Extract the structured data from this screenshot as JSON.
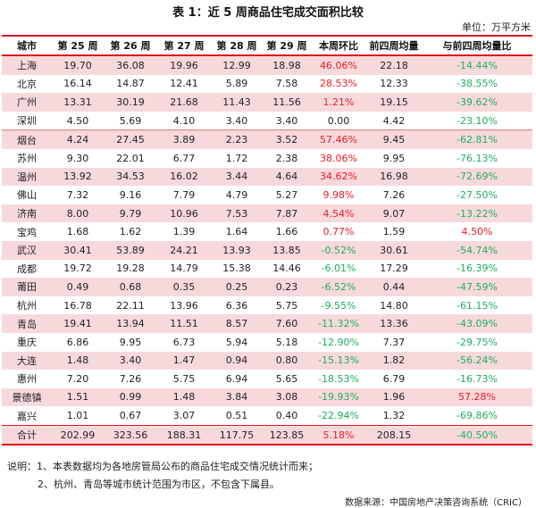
{
  "title": "表 1：近 5 周商品住宅成交面积比较",
  "unit": "单位：万平方米",
  "table": {
    "headers": [
      "城市",
      "第 25 周",
      "第 26 周",
      "第 27 周",
      "第 28 周",
      "第 29 周",
      "本周环比",
      "前四周均量",
      "与前四周均量比"
    ],
    "rows": [
      {
        "city": "上海",
        "w25": "19.70",
        "w26": "36.08",
        "w27": "19.96",
        "w28": "12.99",
        "w29": "18.98",
        "wow": "46.06%",
        "avg4": "22.18",
        "vs_avg": "-14.44%"
      },
      {
        "city": "北京",
        "w25": "16.14",
        "w26": "14.87",
        "w27": "12.41",
        "w28": "5.89",
        "w29": "7.58",
        "wow": "28.53%",
        "avg4": "12.33",
        "vs_avg": "-38.55%"
      },
      {
        "city": "广州",
        "w25": "13.31",
        "w26": "30.19",
        "w27": "21.68",
        "w28": "11.43",
        "w29": "11.56",
        "wow": "1.21%",
        "avg4": "19.15",
        "vs_avg": "-39.62%"
      },
      {
        "city": "深圳",
        "w25": "4.50",
        "w26": "5.69",
        "w27": "4.10",
        "w28": "3.40",
        "w29": "3.40",
        "wow": "0.00",
        "avg4": "4.42",
        "vs_avg": "-23.10%"
      },
      {
        "city": "烟台",
        "w25": "4.24",
        "w26": "27.45",
        "w27": "3.89",
        "w28": "2.23",
        "w29": "3.52",
        "wow": "57.46%",
        "avg4": "9.45",
        "vs_avg": "-62.81%"
      },
      {
        "city": "苏州",
        "w25": "9.30",
        "w26": "22.01",
        "w27": "6.77",
        "w28": "1.72",
        "w29": "2.38",
        "wow": "38.06%",
        "avg4": "9.95",
        "vs_avg": "-76.13%"
      },
      {
        "city": "温州",
        "w25": "13.92",
        "w26": "34.53",
        "w27": "16.02",
        "w28": "3.44",
        "w29": "4.64",
        "wow": "34.62%",
        "avg4": "16.98",
        "vs_avg": "-72.69%"
      },
      {
        "city": "佛山",
        "w25": "7.32",
        "w26": "9.16",
        "w27": "7.79",
        "w28": "4.79",
        "w29": "5.27",
        "wow": "9.98%",
        "avg4": "7.26",
        "vs_avg": "-27.50%"
      },
      {
        "city": "济南",
        "w25": "8.00",
        "w26": "9.79",
        "w27": "10.96",
        "w28": "7.53",
        "w29": "7.87",
        "wow": "4.54%",
        "avg4": "9.07",
        "vs_avg": "-13.22%"
      },
      {
        "city": "宝鸡",
        "w25": "1.68",
        "w26": "1.62",
        "w27": "1.39",
        "w28": "1.64",
        "w29": "1.66",
        "wow": "0.77%",
        "avg4": "1.59",
        "vs_avg": "4.50%"
      },
      {
        "city": "武汉",
        "w25": "30.41",
        "w26": "53.89",
        "w27": "24.21",
        "w28": "13.93",
        "w29": "13.85",
        "wow": "-0.52%",
        "avg4": "30.61",
        "vs_avg": "-54.74%"
      },
      {
        "city": "成都",
        "w25": "19.72",
        "w26": "19.28",
        "w27": "14.79",
        "w28": "15.38",
        "w29": "14.46",
        "wow": "-6.01%",
        "avg4": "17.29",
        "vs_avg": "-16.39%"
      },
      {
        "city": "莆田",
        "w25": "0.49",
        "w26": "0.68",
        "w27": "0.35",
        "w28": "0.25",
        "w29": "0.23",
        "wow": "-6.52%",
        "avg4": "0.44",
        "vs_avg": "-47.59%"
      },
      {
        "city": "杭州",
        "w25": "16.78",
        "w26": "22.11",
        "w27": "13.96",
        "w28": "6.36",
        "w29": "5.75",
        "wow": "-9.55%",
        "avg4": "14.80",
        "vs_avg": "-61.15%"
      },
      {
        "city": "青岛",
        "w25": "19.41",
        "w26": "13.94",
        "w27": "11.51",
        "w28": "8.57",
        "w29": "7.60",
        "wow": "-11.32%",
        "avg4": "13.36",
        "vs_avg": "-43.09%"
      },
      {
        "city": "重庆",
        "w25": "6.86",
        "w26": "9.95",
        "w27": "6.73",
        "w28": "5.94",
        "w29": "5.18",
        "wow": "-12.90%",
        "avg4": "7.37",
        "vs_avg": "-29.75%"
      },
      {
        "city": "大连",
        "w25": "1.48",
        "w26": "3.40",
        "w27": "1.47",
        "w28": "0.94",
        "w29": "0.80",
        "wow": "-15.13%",
        "avg4": "1.82",
        "vs_avg": "-56.24%"
      },
      {
        "city": "惠州",
        "w25": "7.20",
        "w26": "7.26",
        "w27": "5.75",
        "w28": "6.94",
        "w29": "5.65",
        "wow": "-18.53%",
        "avg4": "6.79",
        "vs_avg": "-16.73%"
      },
      {
        "city": "景德镇",
        "w25": "1.51",
        "w26": "0.99",
        "w27": "1.48",
        "w28": "3.84",
        "w29": "3.08",
        "wow": "-19.93%",
        "avg4": "1.96",
        "vs_avg": "57.28%"
      },
      {
        "city": "嘉兴",
        "w25": "1.01",
        "w26": "0.67",
        "w27": "3.07",
        "w28": "0.51",
        "w29": "0.40",
        "wow": "-22.94%",
        "avg4": "1.32",
        "vs_avg": "-69.86%"
      }
    ],
    "total": {
      "city": "合计",
      "w25": "202.99",
      "w26": "323.56",
      "w27": "188.31",
      "w28": "117.75",
      "w29": "123.85",
      "wow": "5.18%",
      "avg4": "208.15",
      "vs_avg": "-40.50%"
    }
  },
  "notes": [
    "说明：1、本表数据均为各地房管局公布的商品住宅成交情况统计而来；",
    "2、杭州、青岛等城市统计范围为市区，不包含下属县。"
  ],
  "source": "数据来源：中国房地产决策咨询系统（CRIC）",
  "colors": {
    "accent_red": "#d71920",
    "row_shade": "#f7d9dc",
    "positive": "#ee1c25",
    "negative": "#1fae5f"
  }
}
